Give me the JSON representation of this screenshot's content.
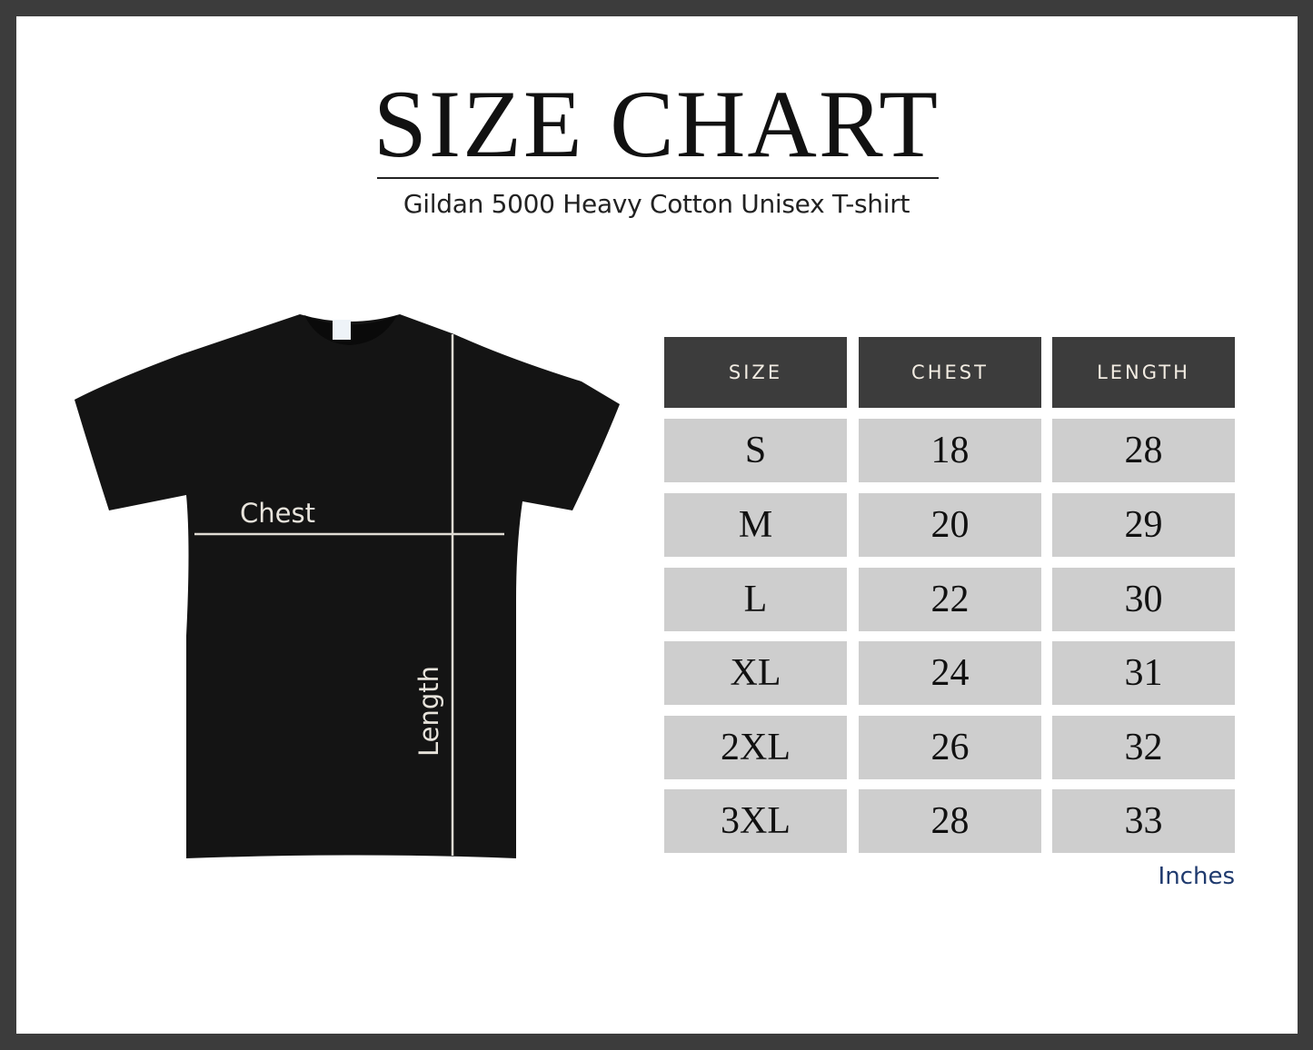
{
  "title": "SIZE CHART",
  "subtitle": "Gildan 5000 Heavy Cotton Unisex T-shirt",
  "diagram": {
    "chest_label": "Chest",
    "length_label": "Length"
  },
  "table": {
    "headers": [
      "SIZE",
      "CHEST",
      "LENGTH"
    ],
    "rows": [
      [
        "S",
        "18",
        "28"
      ],
      [
        "M",
        "20",
        "29"
      ],
      [
        "L",
        "22",
        "30"
      ],
      [
        "XL",
        "24",
        "31"
      ],
      [
        "2XL",
        "26",
        "32"
      ],
      [
        "3XL",
        "28",
        "33"
      ]
    ],
    "units": "Inches"
  },
  "colors": {
    "frame": "#3c3c3c",
    "header_bg": "#3c3c3c",
    "cell_bg": "#cecece",
    "units_text": "#1f3a6e",
    "shirt": "#141414"
  }
}
